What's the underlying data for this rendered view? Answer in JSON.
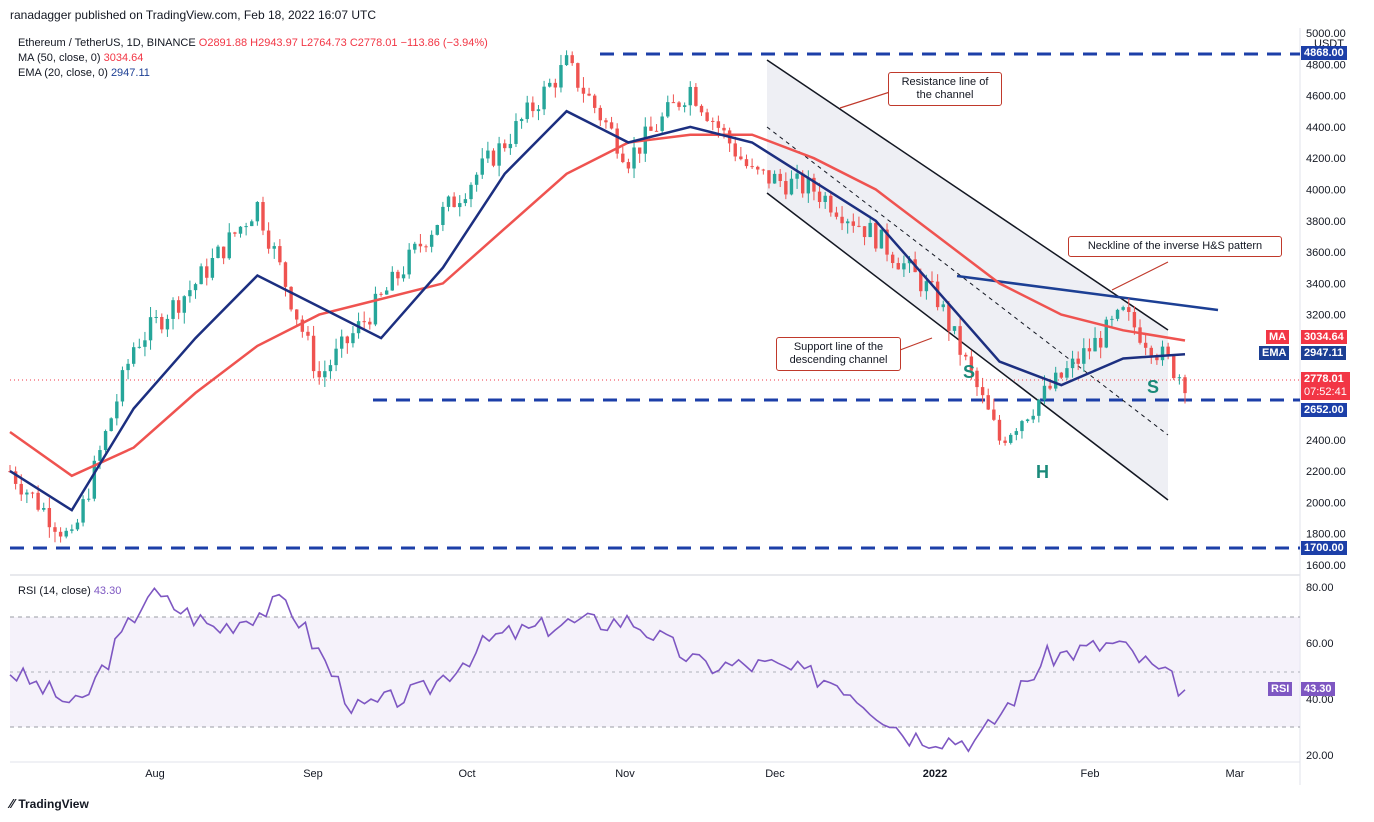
{
  "header": {
    "published": "ranadagger published on TradingView.com, Feb 18, 2022 16:07 UTC"
  },
  "legend": {
    "symbol": "Ethereum / TetherUS, 1D, BINANCE",
    "ohlc": "O2891.88  H2943.97  L2764.73  C2778.01  −113.86 (−3.94%)",
    "ma_label": "MA (50, close, 0)",
    "ma_value": "3034.64",
    "ema_label": "EMA (20, close, 0)",
    "ema_value": "2947.11",
    "rsi_label": "RSI (14, close)",
    "rsi_value": "43.30"
  },
  "price_axis": {
    "currency": "USDT",
    "ticks": [
      "5000.00",
      "4800.00",
      "4600.00",
      "4400.00",
      "4200.00",
      "4000.00",
      "3800.00",
      "3600.00",
      "3400.00",
      "3200.00",
      "2400.00",
      "2200.00",
      "2000.00",
      "1800.00",
      "1600.00"
    ]
  },
  "rsi_axis": {
    "ticks": [
      "80.00",
      "60.00",
      "40.00",
      "20.00"
    ]
  },
  "time_axis": {
    "labels": [
      "Aug",
      "Sep",
      "Oct",
      "Nov",
      "Dec",
      "2022",
      "Feb",
      "Mar"
    ]
  },
  "price_tags": {
    "ma": {
      "name": "MA",
      "value": "3034.64",
      "color": "#f23645"
    },
    "ema": {
      "name": "EMA",
      "value": "2947.11",
      "color": "#1c3f94"
    },
    "last": {
      "value": "2778.01",
      "countdown": "07:52:41",
      "color": "#f23645"
    },
    "level_4868": {
      "value": "4868.00",
      "color": "#1c3fa8"
    },
    "level_2652": {
      "value": "2652.00",
      "color": "#1c3fa8"
    },
    "level_1700": {
      "value": "1700.00",
      "color": "#1c3fa8"
    },
    "rsi": {
      "name": "RSI",
      "value": "43.30",
      "color": "#7e57c2"
    }
  },
  "annotations": {
    "resistance": "Resistance line of the channel",
    "support": "Support line of the descending channel",
    "neckline": "Neckline of the inverse H&S pattern",
    "left_shoulder": "S",
    "head": "H",
    "right_shoulder": "S"
  },
  "footer": {
    "brand": "TradingView"
  },
  "chart_data": {
    "type": "line",
    "title": "Ethereum / TetherUS, 1D, BINANCE",
    "x": [
      "Jul 15",
      "Aug 1",
      "Aug 15",
      "Sep 1",
      "Sep 8",
      "Sep 21",
      "Oct 1",
      "Oct 15",
      "Nov 1",
      "Nov 10",
      "Nov 20",
      "Dec 1",
      "Dec 4",
      "Dec 15",
      "Jan 1",
      "Jan 10",
      "Jan 22",
      "Feb 1",
      "Feb 10",
      "Feb 18"
    ],
    "series": [
      {
        "name": "Ethereum / TetherUS",
        "values": [
          2200,
          1750,
          3000,
          3400,
          3900,
          2800,
          3300,
          3850,
          4300,
          4800,
          4200,
          4650,
          4100,
          4000,
          3700,
          3300,
          2400,
          2800,
          3200,
          2778
        ]
      },
      {
        "name": "MA (50, close, 0)",
        "values": [
          2450,
          2170,
          2350,
          2700,
          3000,
          3200,
          3300,
          3400,
          3750,
          4100,
          4300,
          4350,
          4350,
          4200,
          4000,
          3700,
          3400,
          3200,
          3100,
          3034.64
        ]
      },
      {
        "name": "EMA (20, close, 0)",
        "values": [
          2200,
          1950,
          2600,
          3050,
          3450,
          3250,
          3050,
          3500,
          4100,
          4500,
          4300,
          4400,
          4300,
          4050,
          3800,
          3350,
          2900,
          2750,
          2920,
          2947.11
        ]
      }
    ],
    "horizontal_levels": [
      4868.0,
      2652.0,
      1700.0
    ],
    "ylim": [
      1600,
      5000
    ],
    "rsi": {
      "name": "RSI (14, close)",
      "ylim": [
        20,
        80
      ],
      "bands": [
        30,
        50,
        70
      ],
      "x": [
        "Jul 15",
        "Aug 1",
        "Aug 15",
        "Sep 1",
        "Sep 8",
        "Sep 21",
        "Oct 1",
        "Oct 15",
        "Nov 1",
        "Nov 10",
        "Dec 1",
        "Dec 15",
        "Jan 1",
        "Jan 10",
        "Jan 22",
        "Feb 1",
        "Feb 10",
        "Feb 18"
      ],
      "values": [
        50,
        37,
        78,
        65,
        75,
        36,
        43,
        62,
        67,
        68,
        52,
        52,
        46,
        27,
        25,
        55,
        60,
        43.3
      ]
    }
  }
}
